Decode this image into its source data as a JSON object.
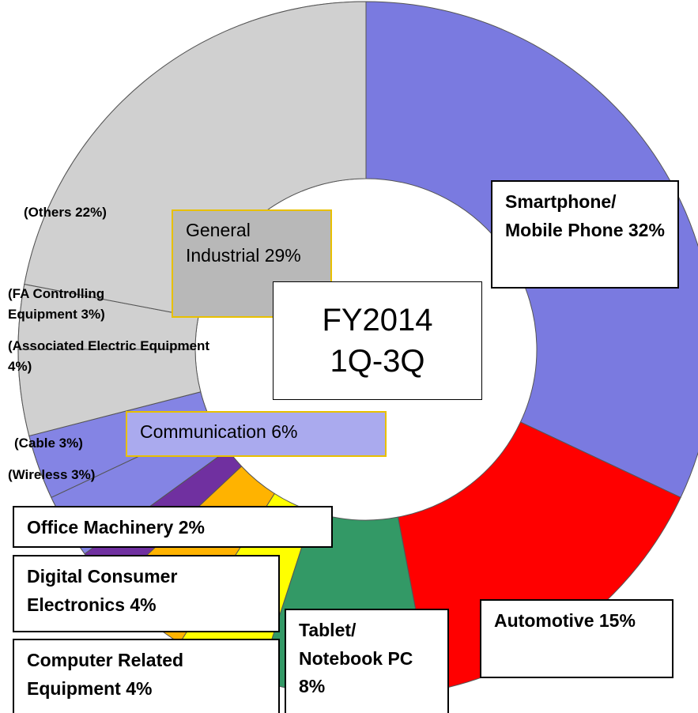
{
  "chart_data": {
    "type": "donut",
    "center_label": "FY2014 1Q-3Q",
    "segments": [
      {
        "name": "Smartphone/ Mobile Phone",
        "value": 32,
        "value_label": "32%",
        "color": "#7a7ae0"
      },
      {
        "name": "Automotive",
        "value": 15,
        "value_label": "15%",
        "color": "#ff0000"
      },
      {
        "name": "Tablet/ Notebook PC",
        "value": 8,
        "value_label": "8%",
        "color": "#339966"
      },
      {
        "name": "Computer Related Equipment",
        "value": 4,
        "value_label": "4%",
        "color": "#ffff00"
      },
      {
        "name": "Digital Consumer Electronics",
        "value": 4,
        "value_label": "4%",
        "color": "#ffb300"
      },
      {
        "name": "Office Machinery",
        "value": 2,
        "value_label": "2%",
        "color": "#7030a0"
      },
      {
        "name": "Communication",
        "value": 6,
        "value_label": "6%",
        "color": "#8484e4",
        "parts": [
          {
            "label": "(Wireless 3%)",
            "value": 3
          },
          {
            "label": "(Cable 3%)",
            "value": 3
          }
        ]
      },
      {
        "name": "General Industrial",
        "value": 29,
        "value_label": "29%",
        "color": "#d0d0d0",
        "parts": [
          {
            "label": "(Associated Electric Equipment  4%)",
            "value": 4
          },
          {
            "label": "(FA Controlling Equipment 3%)",
            "value": 3
          },
          {
            "label": "(Others 22%)",
            "value": 22
          }
        ]
      }
    ]
  }
}
